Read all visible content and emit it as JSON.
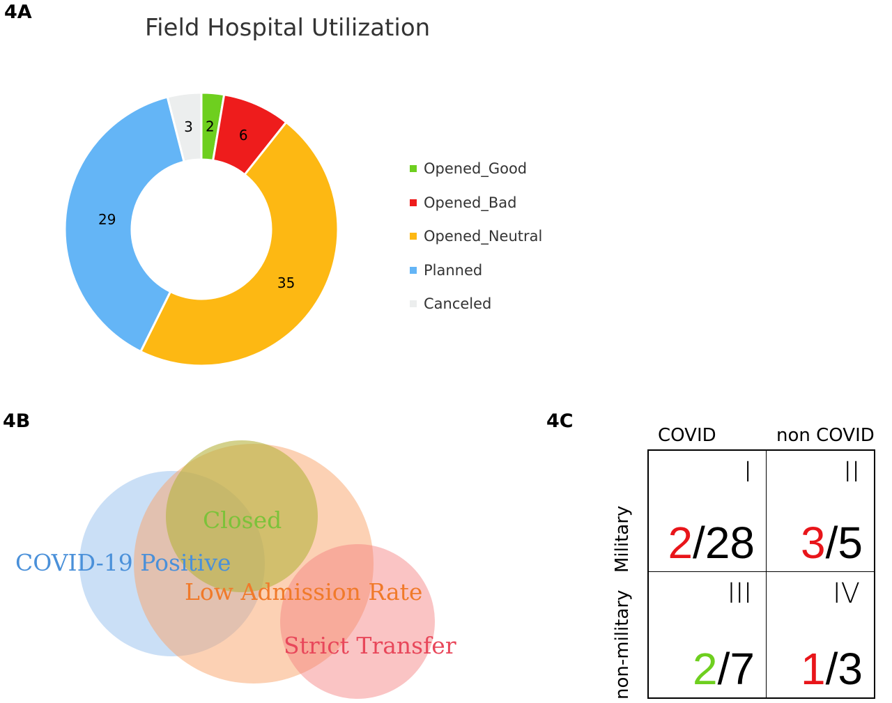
{
  "panels": {
    "a": "4A",
    "b": "4B",
    "c": "4C"
  },
  "chart_data": {
    "type": "pie",
    "variant": "donut",
    "title": "Field Hospital Utilization",
    "slices": [
      {
        "label": "Opened_Good",
        "value": 2,
        "color": "#6ecf1f"
      },
      {
        "label": "Opened_Bad",
        "value": 6,
        "color": "#ee1c1c"
      },
      {
        "label": "Opened_Neutral",
        "value": 35,
        "color": "#fdb813"
      },
      {
        "label": "Planned",
        "value": 29,
        "color": "#64b5f6"
      },
      {
        "label": "Canceled",
        "value": 3,
        "color": "#eceeee"
      }
    ],
    "legend_position": "right"
  },
  "venn": {
    "sets": [
      {
        "label": "COVID-19 Positive",
        "color": "#9ec5ef",
        "text_color": "#4a90d9"
      },
      {
        "label": "Closed",
        "color": "#b5b23e",
        "text_color": "#7cc23a"
      },
      {
        "label": "Low Admission Rate",
        "color": "#f9a36a",
        "text_color": "#f07a2a"
      },
      {
        "label": "Strict Transfer",
        "color": "#f47c7c",
        "text_color": "#e8475a"
      }
    ]
  },
  "table_c": {
    "columns": [
      "COVID",
      "non COVID"
    ],
    "rows": [
      "Military",
      "non-military"
    ],
    "cells": [
      {
        "roman": "I",
        "num": "2",
        "den": "/28",
        "num_color": "#e8151a"
      },
      {
        "roman": "II",
        "num": "3",
        "den": "/5",
        "num_color": "#e8151a"
      },
      {
        "roman": "III",
        "num": "2",
        "den": "/7",
        "num_color": "#6ecf1f"
      },
      {
        "roman": "IV",
        "num": "1",
        "den": "/3",
        "num_color": "#e8151a"
      }
    ]
  }
}
